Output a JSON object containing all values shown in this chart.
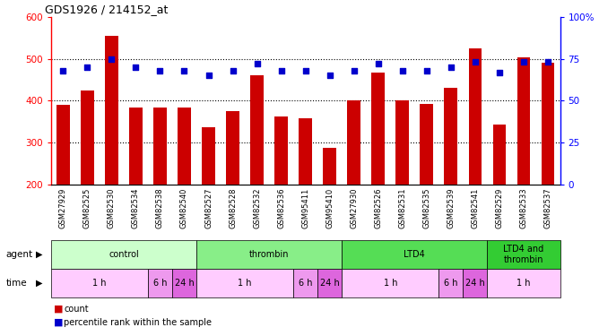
{
  "title": "GDS1926 / 214152_at",
  "samples": [
    "GSM27929",
    "GSM82525",
    "GSM82530",
    "GSM82534",
    "GSM82538",
    "GSM82540",
    "GSM82527",
    "GSM82528",
    "GSM82532",
    "GSM82536",
    "GSM95411",
    "GSM95410",
    "GSM27930",
    "GSM82526",
    "GSM82531",
    "GSM82535",
    "GSM82539",
    "GSM82541",
    "GSM82529",
    "GSM82533",
    "GSM82537"
  ],
  "counts": [
    390,
    425,
    555,
    383,
    383,
    385,
    338,
    375,
    460,
    363,
    358,
    289,
    400,
    468,
    400,
    393,
    430,
    525,
    343,
    503,
    490
  ],
  "percentile_ranks": [
    68,
    70,
    75,
    70,
    68,
    68,
    65,
    68,
    72,
    68,
    68,
    65,
    68,
    72,
    68,
    68,
    70,
    73,
    67,
    73,
    73
  ],
  "ylim_left": [
    200,
    600
  ],
  "ylim_right": [
    0,
    100
  ],
  "yticks_left": [
    200,
    300,
    400,
    500,
    600
  ],
  "yticks_right": [
    0,
    25,
    50,
    75,
    100
  ],
  "bar_color": "#cc0000",
  "scatter_color": "#0000cc",
  "agent_groups": [
    {
      "label": "control",
      "start": 0,
      "end": 6,
      "color": "#ccffcc"
    },
    {
      "label": "thrombin",
      "start": 6,
      "end": 12,
      "color": "#88ee88"
    },
    {
      "label": "LTD4",
      "start": 12,
      "end": 18,
      "color": "#55dd55"
    },
    {
      "label": "LTD4 and\nthrombin",
      "start": 18,
      "end": 21,
      "color": "#33cc33"
    }
  ],
  "time_groups": [
    {
      "label": "1 h",
      "start": 0,
      "end": 4,
      "color": "#ffccff"
    },
    {
      "label": "6 h",
      "start": 4,
      "end": 5,
      "color": "#ee99ee"
    },
    {
      "label": "24 h",
      "start": 5,
      "end": 6,
      "color": "#dd66dd"
    },
    {
      "label": "1 h",
      "start": 6,
      "end": 10,
      "color": "#ffccff"
    },
    {
      "label": "6 h",
      "start": 10,
      "end": 11,
      "color": "#ee99ee"
    },
    {
      "label": "24 h",
      "start": 11,
      "end": 12,
      "color": "#dd66dd"
    },
    {
      "label": "1 h",
      "start": 12,
      "end": 16,
      "color": "#ffccff"
    },
    {
      "label": "6 h",
      "start": 16,
      "end": 17,
      "color": "#ee99ee"
    },
    {
      "label": "24 h",
      "start": 17,
      "end": 18,
      "color": "#dd66dd"
    },
    {
      "label": "1 h",
      "start": 18,
      "end": 21,
      "color": "#ffccff"
    }
  ]
}
